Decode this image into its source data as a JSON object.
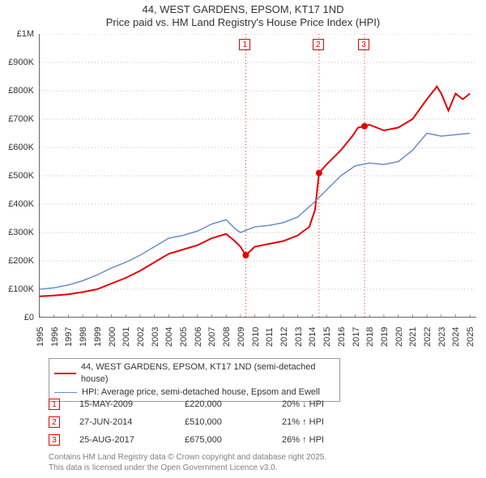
{
  "title": {
    "line1": "44, WEST GARDENS, EPSOM, KT17 1ND",
    "line2": "Price paid vs. HM Land Registry's House Price Index (HPI)"
  },
  "chart": {
    "type": "line",
    "background_color": "#ffffff",
    "axis_color": "#666666",
    "text_color": "#333333",
    "grid_dash": "1,3",
    "grid_color": "#808080",
    "x": {
      "min": 1995,
      "max": 2025.5,
      "ticks": [
        1995,
        1996,
        1997,
        1998,
        1999,
        2000,
        2001,
        2002,
        2003,
        2004,
        2005,
        2006,
        2007,
        2008,
        2009,
        2010,
        2011,
        2012,
        2013,
        2014,
        2015,
        2016,
        2017,
        2018,
        2019,
        2020,
        2021,
        2022,
        2023,
        2024,
        2025
      ],
      "tick_labels": [
        "1995",
        "1996",
        "1997",
        "1998",
        "1999",
        "2000",
        "2001",
        "2002",
        "2003",
        "2004",
        "2005",
        "2006",
        "2007",
        "2008",
        "2009",
        "2010",
        "2011",
        "2012",
        "2013",
        "2014",
        "2015",
        "2016",
        "2017",
        "2018",
        "2019",
        "2020",
        "2021",
        "2022",
        "2023",
        "2024",
        "2025"
      ]
    },
    "y": {
      "min": 0,
      "max": 1000000,
      "ticks": [
        0,
        100000,
        200000,
        300000,
        400000,
        500000,
        600000,
        700000,
        800000,
        900000,
        1000000
      ],
      "tick_labels": [
        "£0",
        "£100K",
        "£200K",
        "£300K",
        "£400K",
        "£500K",
        "£600K",
        "£700K",
        "£800K",
        "£900K",
        "£1M"
      ]
    },
    "series": [
      {
        "id": "subject",
        "color": "#e60000",
        "width": 2,
        "points": [
          [
            1995,
            75000
          ],
          [
            1996,
            78000
          ],
          [
            1997,
            82000
          ],
          [
            1998,
            90000
          ],
          [
            1999,
            100000
          ],
          [
            2000,
            120000
          ],
          [
            2001,
            140000
          ],
          [
            2002,
            165000
          ],
          [
            2003,
            195000
          ],
          [
            2004,
            225000
          ],
          [
            2005,
            240000
          ],
          [
            2006,
            255000
          ],
          [
            2007,
            280000
          ],
          [
            2008,
            295000
          ],
          [
            2008.6,
            270000
          ],
          [
            2009,
            250000
          ],
          [
            2009.37,
            220000
          ],
          [
            2010,
            250000
          ],
          [
            2011,
            260000
          ],
          [
            2012,
            270000
          ],
          [
            2013,
            290000
          ],
          [
            2013.8,
            320000
          ],
          [
            2014.2,
            380000
          ],
          [
            2014.48,
            510000
          ],
          [
            2015,
            540000
          ],
          [
            2016,
            590000
          ],
          [
            2016.8,
            640000
          ],
          [
            2017.2,
            670000
          ],
          [
            2017.65,
            675000
          ],
          [
            2018,
            680000
          ],
          [
            2019,
            660000
          ],
          [
            2020,
            670000
          ],
          [
            2021,
            700000
          ],
          [
            2022,
            770000
          ],
          [
            2022.7,
            815000
          ],
          [
            2023,
            790000
          ],
          [
            2023.5,
            730000
          ],
          [
            2024,
            790000
          ],
          [
            2024.5,
            770000
          ],
          [
            2025,
            790000
          ]
        ],
        "markers": [
          {
            "x": 2009.37,
            "y": 220000
          },
          {
            "x": 2014.48,
            "y": 510000
          },
          {
            "x": 2017.65,
            "y": 675000
          }
        ]
      },
      {
        "id": "hpi",
        "color": "#6a8fc7",
        "width": 1.5,
        "points": [
          [
            1995,
            100000
          ],
          [
            1996,
            105000
          ],
          [
            1997,
            115000
          ],
          [
            1998,
            130000
          ],
          [
            1999,
            150000
          ],
          [
            2000,
            175000
          ],
          [
            2001,
            195000
          ],
          [
            2002,
            220000
          ],
          [
            2003,
            250000
          ],
          [
            2004,
            280000
          ],
          [
            2005,
            290000
          ],
          [
            2006,
            305000
          ],
          [
            2007,
            330000
          ],
          [
            2008,
            345000
          ],
          [
            2008.7,
            310000
          ],
          [
            2009,
            300000
          ],
          [
            2010,
            320000
          ],
          [
            2011,
            325000
          ],
          [
            2012,
            335000
          ],
          [
            2013,
            355000
          ],
          [
            2014,
            400000
          ],
          [
            2015,
            450000
          ],
          [
            2016,
            500000
          ],
          [
            2017,
            535000
          ],
          [
            2018,
            545000
          ],
          [
            2019,
            540000
          ],
          [
            2020,
            550000
          ],
          [
            2021,
            590000
          ],
          [
            2022,
            650000
          ],
          [
            2023,
            640000
          ],
          [
            2024,
            645000
          ],
          [
            2025,
            650000
          ]
        ]
      }
    ],
    "event_markers": [
      {
        "n": "1",
        "x": 2009.37,
        "color": "#e60000"
      },
      {
        "n": "2",
        "x": 2014.48,
        "color": "#e60000"
      },
      {
        "n": "3",
        "x": 2017.65,
        "color": "#e60000"
      }
    ]
  },
  "legend": {
    "border_color": "#999999",
    "items": [
      {
        "color": "#e60000",
        "width": 2,
        "label": "44, WEST GARDENS, EPSOM, KT17 1ND (semi-detached house)"
      },
      {
        "color": "#6a8fc7",
        "width": 1.5,
        "label": "HPI: Average price, semi-detached house, Epsom and Ewell"
      }
    ]
  },
  "events": [
    {
      "n": "1",
      "color": "#e60000",
      "date": "15-MAY-2009",
      "price": "£220,000",
      "diff": "20% ↓ HPI"
    },
    {
      "n": "2",
      "color": "#e60000",
      "date": "27-JUN-2014",
      "price": "£510,000",
      "diff": "21% ↑ HPI"
    },
    {
      "n": "3",
      "color": "#e60000",
      "date": "25-AUG-2017",
      "price": "£675,000",
      "diff": "26% ↑ HPI"
    }
  ],
  "footer": {
    "line1": "Contains HM Land Registry data © Crown copyright and database right 2025.",
    "line2": "This data is licensed under the Open Government Licence v3.0.",
    "color": "#808080"
  }
}
